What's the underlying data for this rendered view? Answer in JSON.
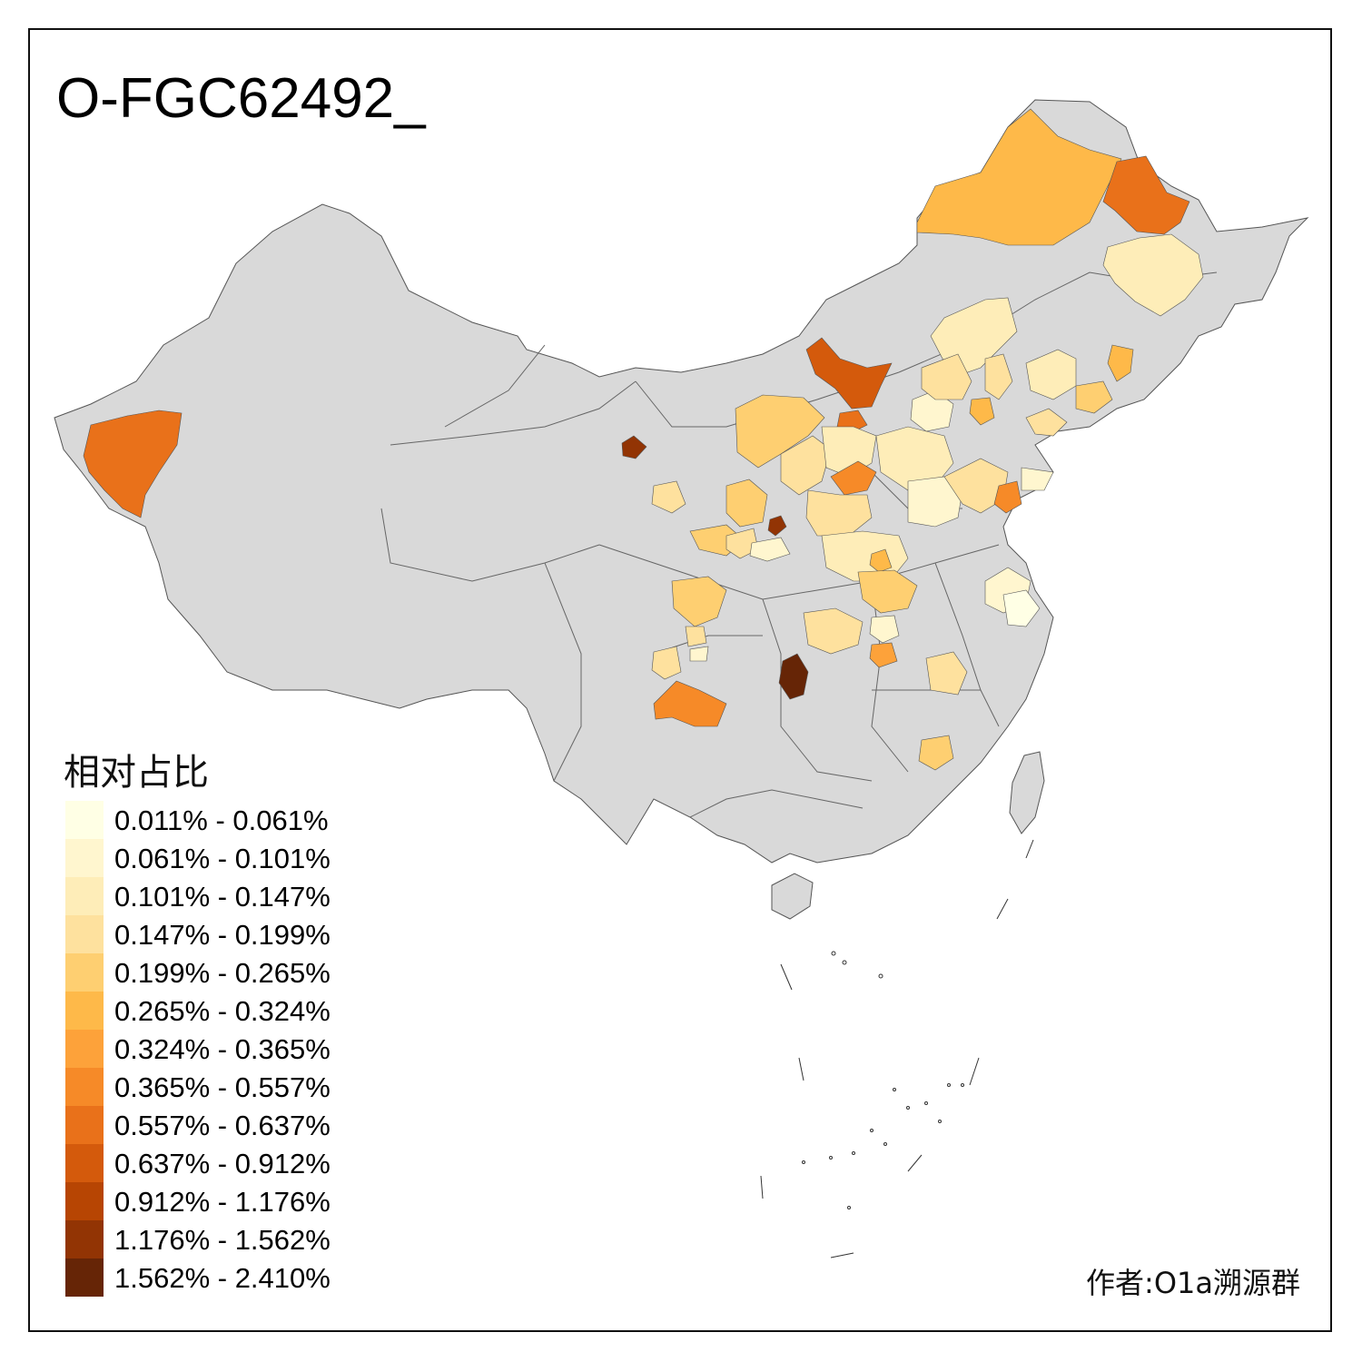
{
  "title": "O-FGC62492_",
  "legend": {
    "title": "相对占比",
    "items": [
      {
        "label": "0.011% - 0.061%",
        "color": "#ffffe5"
      },
      {
        "label": "0.061% - 0.101%",
        "color": "#fff6cf"
      },
      {
        "label": "0.101% - 0.147%",
        "color": "#feedb8"
      },
      {
        "label": "0.147% - 0.199%",
        "color": "#fee19e"
      },
      {
        "label": "0.199% - 0.265%",
        "color": "#fecf71"
      },
      {
        "label": "0.265% - 0.324%",
        "color": "#feb949"
      },
      {
        "label": "0.324% - 0.365%",
        "color": "#fda23a"
      },
      {
        "label": "0.365% - 0.557%",
        "color": "#f68a28"
      },
      {
        "label": "0.557% - 0.637%",
        "color": "#e9711a"
      },
      {
        "label": "0.637% - 0.912%",
        "color": "#d45a0c"
      },
      {
        "label": "0.912% - 1.176%",
        "color": "#b74503"
      },
      {
        "label": "1.176% - 1.562%",
        "color": "#923404"
      },
      {
        "label": "1.562% - 2.410%",
        "color": "#662506"
      }
    ]
  },
  "author": "作者:O1a溯源群",
  "colors": {
    "base": "#d9d9d9",
    "border": "#555555"
  }
}
